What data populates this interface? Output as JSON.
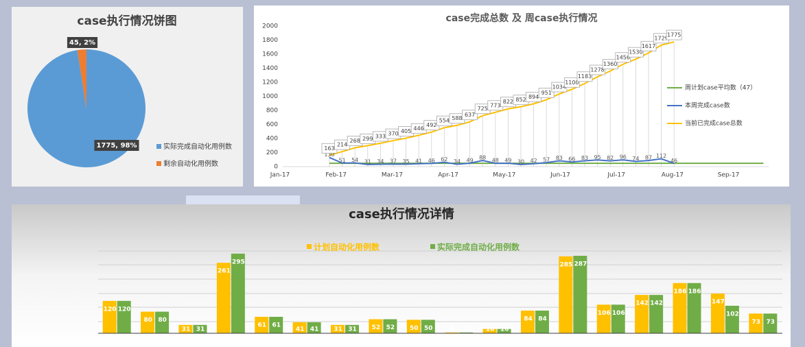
{
  "chart_data": [
    {
      "type": "pie",
      "title": "case执行情况饼图",
      "categories": [
        "实际完成自动化用例数",
        "剩余自动化用例数"
      ],
      "values": [
        1775,
        45
      ],
      "value_labels": [
        "1775, 98%",
        "45, 2%"
      ],
      "colors": [
        "#5b9bd5",
        "#ed7d31"
      ]
    },
    {
      "type": "line",
      "title": "case完成总数 及 周case执行情况",
      "x_labels": [
        "Jan-17",
        "Feb-17",
        "Mar-17",
        "Apr-17",
        "May-17",
        "Jun-17",
        "Jul-17",
        "Aug-17",
        "Sep-17"
      ],
      "ylim": [
        0,
        2000
      ],
      "yticks": [
        0,
        200,
        400,
        600,
        800,
        1000,
        1200,
        1400,
        1600,
        1800,
        2000
      ],
      "series": [
        {
          "name": "周计划case平均数（47）",
          "color": "#70ad47",
          "labels": false,
          "values": [
            47,
            47,
            47,
            47,
            47,
            47,
            47,
            47,
            47,
            47,
            47,
            47,
            47,
            47,
            47,
            47,
            47,
            47,
            47,
            47,
            47,
            47,
            47,
            47,
            47,
            47,
            47,
            47,
            47,
            47,
            47,
            47,
            47,
            47,
            47
          ]
        },
        {
          "name": "本周完成case数",
          "color": "#4472c4",
          "labels": true,
          "values": [
            130,
            51,
            54,
            31,
            34,
            37,
            35,
            41,
            46,
            62,
            34,
            49,
            88,
            48,
            49,
            30,
            42,
            57,
            83,
            66,
            83,
            95,
            82,
            96,
            74,
            87,
            112,
            46,
            null,
            null,
            null,
            null,
            null,
            null,
            null
          ]
        },
        {
          "name": "当前已完成case总数",
          "color": "#ffc000",
          "labels": true,
          "values": [
            163,
            214,
            268,
            299,
            333,
            370,
            405,
            446,
            492,
            554,
            588,
            637,
            725,
            773,
            822,
            852,
            894,
            951,
            1034,
            1100,
            1183,
            1278,
            1360,
            1456,
            1530,
            1617,
            1729,
            1775,
            null,
            null,
            null,
            null,
            null,
            null,
            null
          ]
        }
      ]
    },
    {
      "type": "bar",
      "title": "case执行情况详情",
      "categories": [
        null,
        null,
        null,
        null,
        null,
        null,
        null,
        null,
        null,
        null,
        null,
        null,
        null,
        null,
        null,
        null,
        null,
        null
      ],
      "ylim": [
        0,
        320
      ],
      "series": [
        {
          "name": "计划自动化用例数",
          "color": "#ffc000",
          "values": [
            120,
            80,
            31,
            261,
            61,
            41,
            31,
            52,
            50,
            3,
            16,
            84,
            285,
            106,
            142,
            186,
            147,
            73
          ]
        },
        {
          "name": "实际完成自动化用例数",
          "color": "#70ad47",
          "values": [
            120,
            80,
            31,
            295,
            61,
            41,
            31,
            52,
            50,
            3,
            16,
            84,
            287,
            106,
            142,
            186,
            102,
            73
          ]
        }
      ]
    }
  ]
}
